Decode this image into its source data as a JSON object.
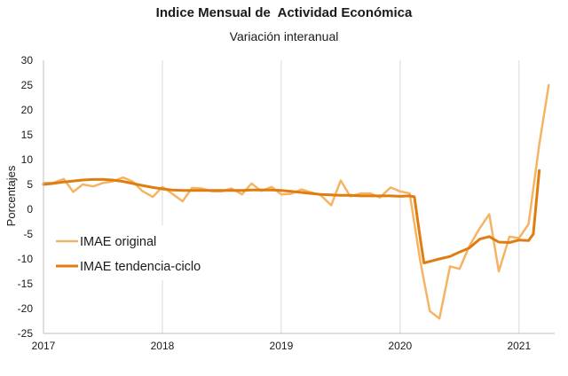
{
  "chart_data": {
    "type": "line",
    "title": "Indice Mensual de  Actividad Económica",
    "subtitle": "Variación interanual",
    "ylabel": "Porcentajes",
    "xlabel": "",
    "ylim": [
      -25,
      30
    ],
    "yticks": [
      -25,
      -20,
      -15,
      -10,
      -5,
      0,
      5,
      10,
      15,
      20,
      25,
      30
    ],
    "xlim": [
      2017,
      2021.3
    ],
    "xticks": [
      2017,
      2018,
      2019,
      2020,
      2021
    ],
    "grid": "vertical",
    "legend_position": "left",
    "series": [
      {
        "name": "IMAE original",
        "color": "#F5B463",
        "stroke": 2.5,
        "points": [
          [
            2017.0,
            5.3
          ],
          [
            2017.08,
            5.3
          ],
          [
            2017.17,
            6.1
          ],
          [
            2017.25,
            3.5
          ],
          [
            2017.33,
            5.0
          ],
          [
            2017.42,
            4.6
          ],
          [
            2017.5,
            5.3
          ],
          [
            2017.58,
            5.6
          ],
          [
            2017.67,
            6.4
          ],
          [
            2017.75,
            5.6
          ],
          [
            2017.83,
            3.7
          ],
          [
            2017.92,
            2.5
          ],
          [
            2018.0,
            4.5
          ],
          [
            2018.08,
            3.2
          ],
          [
            2018.17,
            1.6
          ],
          [
            2018.25,
            4.3
          ],
          [
            2018.33,
            4.2
          ],
          [
            2018.42,
            3.6
          ],
          [
            2018.5,
            3.6
          ],
          [
            2018.58,
            4.2
          ],
          [
            2018.67,
            3.0
          ],
          [
            2018.75,
            5.2
          ],
          [
            2018.83,
            3.7
          ],
          [
            2018.92,
            4.5
          ],
          [
            2019.0,
            3.0
          ],
          [
            2019.08,
            3.1
          ],
          [
            2019.17,
            4.0
          ],
          [
            2019.25,
            3.4
          ],
          [
            2019.33,
            2.9
          ],
          [
            2019.42,
            0.8
          ],
          [
            2019.5,
            5.8
          ],
          [
            2019.58,
            2.6
          ],
          [
            2019.67,
            3.2
          ],
          [
            2019.75,
            3.2
          ],
          [
            2019.83,
            2.4
          ],
          [
            2019.92,
            4.4
          ],
          [
            2020.0,
            3.6
          ],
          [
            2020.08,
            3.2
          ],
          [
            2020.17,
            -10.5
          ],
          [
            2020.25,
            -20.5
          ],
          [
            2020.33,
            -22.0
          ],
          [
            2020.42,
            -11.5
          ],
          [
            2020.5,
            -12.0
          ],
          [
            2020.58,
            -7.5
          ],
          [
            2020.67,
            -3.8
          ],
          [
            2020.75,
            -1.0
          ],
          [
            2020.83,
            -12.5
          ],
          [
            2020.92,
            -5.5
          ],
          [
            2021.0,
            -5.8
          ],
          [
            2021.08,
            -3.0
          ],
          [
            2021.17,
            13.0
          ],
          [
            2021.25,
            25.0
          ]
        ]
      },
      {
        "name": "IMAE tendencia-ciclo",
        "color": "#E07D10",
        "stroke": 3,
        "points": [
          [
            2017.0,
            5.0
          ],
          [
            2017.08,
            5.2
          ],
          [
            2017.17,
            5.5
          ],
          [
            2017.25,
            5.7
          ],
          [
            2017.33,
            5.9
          ],
          [
            2017.42,
            6.0
          ],
          [
            2017.5,
            6.0
          ],
          [
            2017.58,
            5.9
          ],
          [
            2017.67,
            5.6
          ],
          [
            2017.75,
            5.2
          ],
          [
            2017.83,
            4.8
          ],
          [
            2017.92,
            4.4
          ],
          [
            2018.0,
            4.1
          ],
          [
            2018.08,
            3.9
          ],
          [
            2018.17,
            3.8
          ],
          [
            2018.25,
            3.8
          ],
          [
            2018.33,
            3.8
          ],
          [
            2018.42,
            3.8
          ],
          [
            2018.5,
            3.8
          ],
          [
            2018.58,
            3.8
          ],
          [
            2018.67,
            3.8
          ],
          [
            2018.75,
            3.9
          ],
          [
            2018.83,
            3.9
          ],
          [
            2018.92,
            3.9
          ],
          [
            2019.0,
            3.8
          ],
          [
            2019.08,
            3.6
          ],
          [
            2019.17,
            3.4
          ],
          [
            2019.25,
            3.2
          ],
          [
            2019.33,
            3.0
          ],
          [
            2019.42,
            2.9
          ],
          [
            2019.5,
            2.8
          ],
          [
            2019.58,
            2.8
          ],
          [
            2019.67,
            2.7
          ],
          [
            2019.75,
            2.7
          ],
          [
            2019.83,
            2.7
          ],
          [
            2019.92,
            2.7
          ],
          [
            2020.0,
            2.6
          ],
          [
            2020.08,
            2.7
          ],
          [
            2020.12,
            2.5
          ],
          [
            2020.17,
            -6.0
          ],
          [
            2020.2,
            -10.8
          ],
          [
            2020.25,
            -10.5
          ],
          [
            2020.33,
            -10.0
          ],
          [
            2020.42,
            -9.5
          ],
          [
            2020.5,
            -8.6
          ],
          [
            2020.58,
            -7.8
          ],
          [
            2020.67,
            -6.0
          ],
          [
            2020.75,
            -5.5
          ],
          [
            2020.83,
            -6.6
          ],
          [
            2020.92,
            -6.7
          ],
          [
            2021.0,
            -6.2
          ],
          [
            2021.08,
            -6.3
          ],
          [
            2021.12,
            -5.0
          ],
          [
            2021.17,
            7.8
          ]
        ]
      }
    ]
  }
}
